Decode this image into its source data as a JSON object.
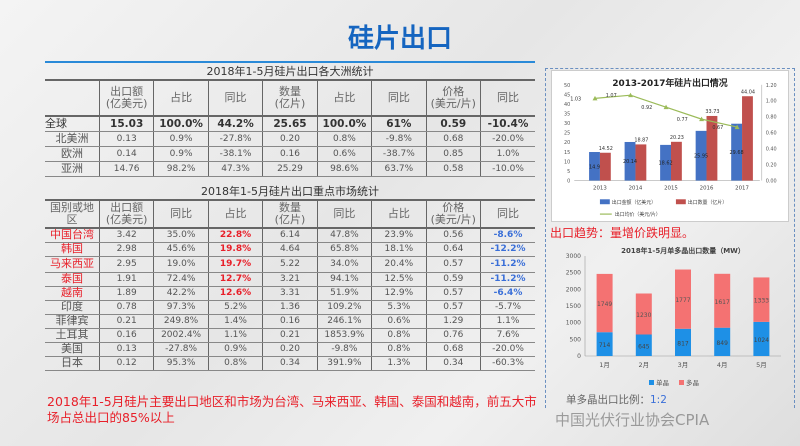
{
  "page": {
    "title": "硅片出口",
    "trend_note": "出口趋势：量增价跌明显。",
    "footer": "2018年1-5月硅片主要出口地区和市场为台湾、马来西亚、韩国、泰国和越南，前五大市场占总出口的85%以上",
    "ratio_label": "单多晶出口比例：",
    "ratio_value": "1:2",
    "watermark": "中国光伏行业协会CPIA"
  },
  "colors": {
    "title": "#1565c0",
    "highlight": "#e8202a",
    "negative_blue": "#3a6fd8",
    "bar_blue": "#4472c4",
    "bar_red": "#c0504d",
    "line_green": "#9bbb59",
    "mono": "#1e90e6",
    "multi": "#f47272"
  },
  "table1": {
    "caption": "2018年1-5月硅片出口各大洲统计",
    "headers": [
      "",
      "出口额\n(亿美元)",
      "占比",
      "同比",
      "数量\n(亿片)",
      "占比",
      "同比",
      "价格\n(美元/片)",
      "同比"
    ],
    "rows": [
      [
        "全球",
        "15.03",
        "100.0%",
        "44.2%",
        "25.65",
        "100.0%",
        "61%",
        "0.59",
        "-10.4%"
      ],
      [
        "北美洲",
        "0.13",
        "0.9%",
        "-27.8%",
        "0.20",
        "0.8%",
        "-9.8%",
        "0.68",
        "-20.0%"
      ],
      [
        "欧洲",
        "0.14",
        "0.9%",
        "-38.1%",
        "0.16",
        "0.6%",
        "-38.7%",
        "0.85",
        "1.0%"
      ],
      [
        "亚洲",
        "14.76",
        "98.2%",
        "47.3%",
        "25.29",
        "98.6%",
        "63.7%",
        "0.58",
        "-10.0%"
      ]
    ]
  },
  "table2": {
    "caption": "2018年1-5月硅片出口重点市场统计",
    "headers": [
      "国别或地区",
      "出口额\n(亿美元)",
      "同比",
      "占比",
      "数量\n(亿片)",
      "同比",
      "占比",
      "价格\n(美元/片)",
      "同比"
    ],
    "rows": [
      [
        "中国台湾",
        "3.42",
        "35.0%",
        "22.8%",
        "6.14",
        "47.8%",
        "23.9%",
        "0.56",
        "-8.6%"
      ],
      [
        "韩国",
        "2.98",
        "45.6%",
        "19.8%",
        "4.64",
        "65.8%",
        "18.1%",
        "0.64",
        "-12.2%"
      ],
      [
        "马来西亚",
        "2.95",
        "19.0%",
        "19.7%",
        "5.22",
        "34.0%",
        "20.4%",
        "0.57",
        "-11.2%"
      ],
      [
        "泰国",
        "1.91",
        "72.4%",
        "12.7%",
        "3.21",
        "94.1%",
        "12.5%",
        "0.59",
        "-11.2%"
      ],
      [
        "越南",
        "1.89",
        "42.2%",
        "12.6%",
        "3.31",
        "51.9%",
        "12.9%",
        "0.57",
        "-6.4%"
      ],
      [
        "印度",
        "0.78",
        "97.3%",
        "5.2%",
        "1.36",
        "109.2%",
        "5.3%",
        "0.57",
        "-5.7%"
      ],
      [
        "菲律宾",
        "0.21",
        "249.8%",
        "1.4%",
        "0.16",
        "246.1%",
        "0.6%",
        "1.29",
        "1.1%"
      ],
      [
        "土耳其",
        "0.16",
        "2002.4%",
        "1.1%",
        "0.21",
        "1853.9%",
        "0.8%",
        "0.76",
        "7.6%"
      ],
      [
        "美国",
        "0.13",
        "-27.8%",
        "0.9%",
        "0.20",
        "-9.8%",
        "0.8%",
        "0.68",
        "-20.0%"
      ],
      [
        "日本",
        "0.12",
        "95.3%",
        "0.8%",
        "0.34",
        "391.9%",
        "1.3%",
        "0.34",
        "-60.3%"
      ]
    ],
    "highlight_rows": 5
  },
  "chart_data": [
    {
      "type": "bar",
      "title": "2013-2017年硅片出口情况",
      "categories": [
        "2013",
        "2014",
        "2015",
        "2016",
        "2017"
      ],
      "series": [
        {
          "name": "出口金额（亿美元）",
          "axis": "left",
          "values": [
            14.9,
            20.14,
            18.62,
            25.95,
            29.68
          ]
        },
        {
          "name": "出口数量（亿片）",
          "axis": "left",
          "values": [
            14.52,
            18.87,
            20.23,
            33.73,
            44.04
          ]
        },
        {
          "name": "出口均价（美元/片）",
          "type": "line",
          "axis": "right",
          "values": [
            1.03,
            1.07,
            0.92,
            0.77,
            0.67
          ]
        }
      ],
      "ylim": [
        0,
        50
      ],
      "yticks": [
        "0",
        "5",
        "10",
        "15",
        "20",
        "25",
        "30",
        "35",
        "40",
        "45",
        "50"
      ],
      "y2lim": [
        0,
        1.2
      ],
      "y2ticks": [
        "0.00",
        "0.20",
        "0.40",
        "0.60",
        "0.80",
        "1.00",
        "1.20"
      ],
      "legend": "bottom"
    },
    {
      "type": "stacked-bar",
      "title": "2018年1-5月单多晶出口数量（MW）",
      "categories": [
        "1月",
        "2月",
        "3月",
        "4月",
        "5月"
      ],
      "series": [
        {
          "name": "单晶",
          "values": [
            714,
            645,
            817,
            849,
            1024
          ]
        },
        {
          "name": "多晶",
          "values": [
            1749,
            1230,
            1777,
            1617,
            1333
          ]
        }
      ],
      "ylim": [
        0,
        3000
      ],
      "yticks": [
        "0",
        "500",
        "1000",
        "1500",
        "2000",
        "2500",
        "3000"
      ],
      "legend": "bottom"
    }
  ]
}
